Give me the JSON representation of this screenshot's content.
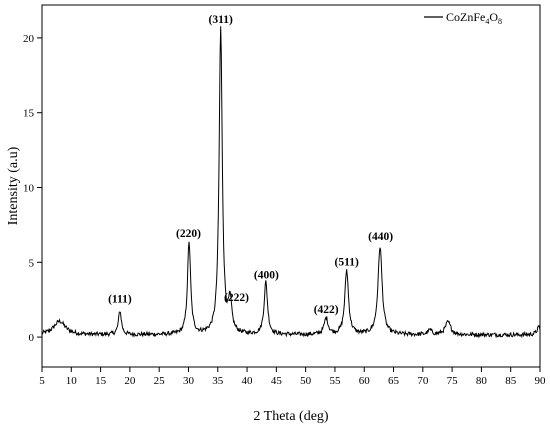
{
  "chart_data": {
    "type": "line",
    "xlabel": "2 Theta (deg)",
    "ylabel": "Intensity (a.u)",
    "xlim": [
      5,
      90
    ],
    "ylim": [
      -2,
      22.2
    ],
    "xticks": [
      5,
      10,
      15,
      20,
      25,
      30,
      35,
      40,
      45,
      50,
      55,
      60,
      65,
      70,
      75,
      80,
      85,
      90
    ],
    "yticks": [
      0,
      5,
      10,
      15,
      20
    ],
    "grid": false,
    "legend": {
      "position": "top-right",
      "text": "CoZnFe",
      "sub1": "4",
      "mid": "O",
      "sub2": "8"
    },
    "series": [
      {
        "name": "CoZnFe4O8",
        "color": "#000000",
        "baseline": 0.15,
        "noise": 0.14,
        "peaks": [
          {
            "x": 8.0,
            "h": 0.9,
            "w": 1.2
          },
          {
            "x": 18.3,
            "h": 1.6,
            "w": 0.3
          },
          {
            "x": 30.1,
            "h": 6.2,
            "w": 0.32
          },
          {
            "x": 35.5,
            "h": 20.5,
            "w": 0.32
          },
          {
            "x": 37.1,
            "h": 2.0,
            "w": 0.35
          },
          {
            "x": 43.2,
            "h": 3.5,
            "w": 0.35
          },
          {
            "x": 53.5,
            "h": 1.1,
            "w": 0.4
          },
          {
            "x": 57.0,
            "h": 4.3,
            "w": 0.38
          },
          {
            "x": 62.7,
            "h": 5.9,
            "w": 0.42
          },
          {
            "x": 71.2,
            "h": 0.3,
            "w": 0.4
          },
          {
            "x": 74.3,
            "h": 0.85,
            "w": 0.55
          },
          {
            "x": 89.8,
            "h": 0.5,
            "w": 0.4
          }
        ]
      }
    ],
    "annotations": [
      {
        "text": "(111)",
        "x": 18.3,
        "y": 2.3
      },
      {
        "text": "(220)",
        "x": 30.0,
        "y": 6.7
      },
      {
        "text": "(311)",
        "x": 35.5,
        "y": 21.0
      },
      {
        "text": "(222)",
        "x": 38.2,
        "y": 2.4
      },
      {
        "text": "(400)",
        "x": 43.3,
        "y": 3.9
      },
      {
        "text": "(422)",
        "x": 53.5,
        "y": 1.6
      },
      {
        "text": "(511)",
        "x": 57.0,
        "y": 4.8
      },
      {
        "text": "(440)",
        "x": 62.8,
        "y": 6.5
      }
    ]
  }
}
